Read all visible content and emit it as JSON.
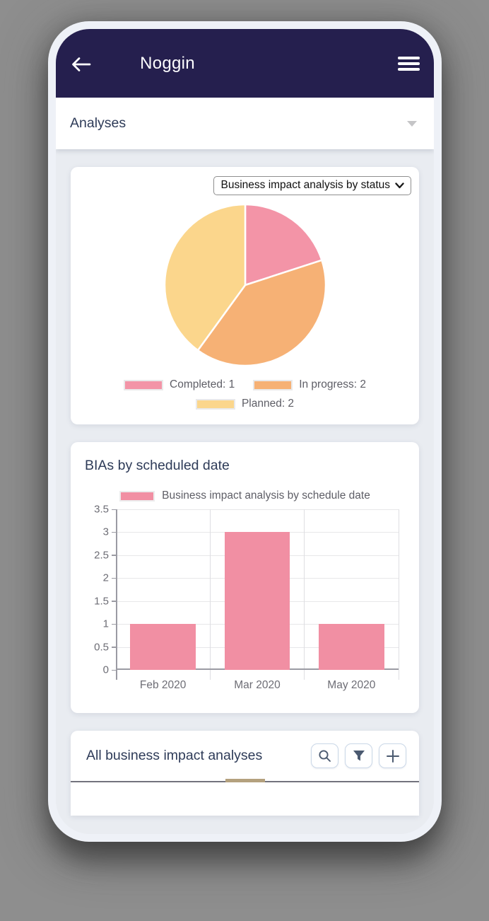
{
  "app": {
    "title": "Noggin",
    "header_bg": "#251f4e"
  },
  "nav": {
    "section_label": "Analyses"
  },
  "status_card": {
    "selector_value": "Business impact analysis by status"
  },
  "bottom_card": {
    "title": "All business impact analyses",
    "buttons": [
      "search",
      "filter",
      "add"
    ]
  },
  "chart_data": [
    {
      "type": "pie",
      "title": "Business impact analysis by status",
      "slices": [
        {
          "label": "Completed",
          "value": 1,
          "color": "#f394a7",
          "legend": "Completed: 1"
        },
        {
          "label": "In progress",
          "value": 2,
          "color": "#f6b175",
          "legend": "In progress: 2"
        },
        {
          "label": "Planned",
          "value": 2,
          "color": "#fbd68c",
          "legend": "Planned: 2"
        }
      ],
      "start_angle_deg": -90,
      "direction": "clockwise",
      "legend_position": "bottom"
    },
    {
      "type": "bar",
      "title": "BIAs by scheduled date",
      "legend": [
        {
          "label": "Business impact analysis by schedule date",
          "color": "#f18fa3"
        }
      ],
      "categories": [
        "Feb 2020",
        "Mar 2020",
        "May 2020"
      ],
      "values": [
        1,
        3,
        1
      ],
      "bar_color": "#f18fa3",
      "ylim": [
        0,
        3.5
      ],
      "ytick_step": 0.5,
      "grid": true,
      "grid_color": "#e7e7e9",
      "axis_color": "#9b9ba3",
      "label_color": "#6d6d75",
      "legend_position": "top"
    }
  ]
}
